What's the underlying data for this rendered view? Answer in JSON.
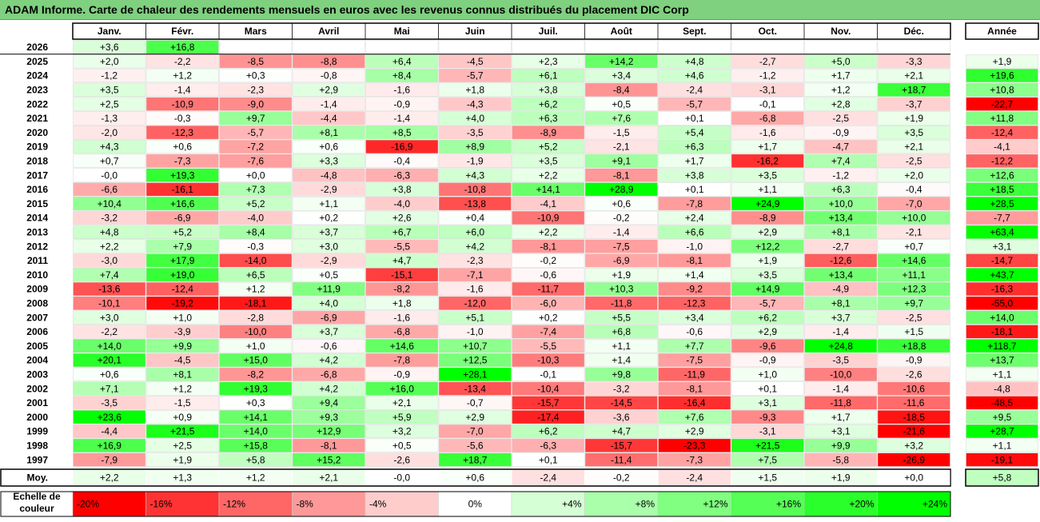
{
  "title": "ADAM Informe. Carte de chaleur des rendements mensuels en euros avec les revenus connus distribués du placement DIC Corp",
  "chart_data": {
    "type": "heatmap",
    "months": [
      "Janv.",
      "Févr.",
      "Mars",
      "Avril",
      "Mai",
      "Juin",
      "Juil.",
      "Août",
      "Sept.",
      "Oct.",
      "Nov.",
      "Déc."
    ],
    "year_label": "Année",
    "avg_label": "Moy.",
    "legend_label": "Echelle de couleur",
    "rows": [
      {
        "year": "2026",
        "values": [
          "+3,6",
          "+16,8",
          "",
          "",
          "",
          "",
          "",
          "",
          "",
          "",
          "",
          ""
        ],
        "total": ""
      },
      {
        "year": "2025",
        "values": [
          "+2,0",
          "-2,2",
          "-8,5",
          "-8,8",
          "+6,4",
          "-4,5",
          "+2,3",
          "+14,2",
          "+4,8",
          "-2,7",
          "+5,0",
          "-3,3"
        ],
        "total": "+1,9"
      },
      {
        "year": "2024",
        "values": [
          "-1,2",
          "+1,2",
          "+0,3",
          "-0,8",
          "+8,4",
          "-5,7",
          "+6,1",
          "+3,4",
          "+4,6",
          "-1,2",
          "+1,7",
          "+2,1"
        ],
        "total": "+19,6"
      },
      {
        "year": "2023",
        "values": [
          "+3,5",
          "-1,4",
          "-2,3",
          "+2,9",
          "-1,6",
          "+1,8",
          "+3,8",
          "-8,4",
          "-2,4",
          "-3,1",
          "+1,2",
          "+18,7"
        ],
        "total": "+10,8"
      },
      {
        "year": "2022",
        "values": [
          "+2,5",
          "-10,9",
          "-9,0",
          "-1,4",
          "-0,9",
          "-4,3",
          "+6,2",
          "+0,5",
          "-5,7",
          "-0,1",
          "+2,8",
          "-3,7"
        ],
        "total": "-22,7"
      },
      {
        "year": "2021",
        "values": [
          "-1,3",
          "-0,3",
          "+9,7",
          "-4,4",
          "-1,4",
          "+4,0",
          "+6,3",
          "+7,6",
          "+0,1",
          "-6,8",
          "-2,5",
          "+1,9"
        ],
        "total": "+11,8"
      },
      {
        "year": "2020",
        "values": [
          "-2,0",
          "-12,3",
          "-5,7",
          "+8,1",
          "+8,5",
          "-3,5",
          "-8,9",
          "-1,5",
          "+5,4",
          "-1,6",
          "-0,9",
          "+3,5"
        ],
        "total": "-12,4"
      },
      {
        "year": "2019",
        "values": [
          "+4,3",
          "+0,6",
          "-7,2",
          "+0,6",
          "-16,9",
          "+8,9",
          "+5,2",
          "-2,1",
          "+6,3",
          "+1,7",
          "-4,7",
          "+2,1"
        ],
        "total": "-4,1"
      },
      {
        "year": "2018",
        "values": [
          "+0,7",
          "-7,3",
          "-7,6",
          "+3,3",
          "-0,4",
          "-1,9",
          "+3,5",
          "+9,1",
          "+1,7",
          "-16,2",
          "+7,4",
          "-2,5"
        ],
        "total": "-12,2"
      },
      {
        "year": "2017",
        "values": [
          "-0,0",
          "+19,3",
          "+0,0",
          "-4,8",
          "-6,3",
          "+4,3",
          "+2,2",
          "-8,1",
          "+3,8",
          "+3,5",
          "-1,2",
          "+2,0"
        ],
        "total": "+12,6"
      },
      {
        "year": "2016",
        "values": [
          "-6,6",
          "-16,1",
          "+7,3",
          "-2,9",
          "+3,8",
          "-10,8",
          "+14,1",
          "+28,9",
          "+0,1",
          "+1,1",
          "+6,3",
          "-0,4"
        ],
        "total": "+18,5"
      },
      {
        "year": "2015",
        "values": [
          "+10,4",
          "+16,6",
          "+5,2",
          "+1,1",
          "-4,0",
          "-13,8",
          "-4,1",
          "+0,6",
          "-7,8",
          "+24,9",
          "+10,0",
          "-7,0"
        ],
        "total": "+28,5"
      },
      {
        "year": "2014",
        "values": [
          "-3,2",
          "-6,9",
          "-4,0",
          "+0,2",
          "+2,6",
          "+0,4",
          "-10,9",
          "-0,2",
          "+2,4",
          "-8,9",
          "+13,4",
          "+10,0"
        ],
        "total": "-7,7"
      },
      {
        "year": "2013",
        "values": [
          "+4,8",
          "+5,2",
          "+8,4",
          "+3,7",
          "+6,7",
          "+6,0",
          "+2,2",
          "-1,4",
          "+6,6",
          "+2,9",
          "+8,1",
          "-2,1"
        ],
        "total": "+63,4"
      },
      {
        "year": "2012",
        "values": [
          "+2,2",
          "+7,9",
          "-0,3",
          "+3,0",
          "-5,5",
          "+4,2",
          "-8,1",
          "-7,5",
          "-1,0",
          "+12,2",
          "-2,7",
          "+0,7"
        ],
        "total": "+3,1"
      },
      {
        "year": "2011",
        "values": [
          "-3,0",
          "+17,9",
          "-14,0",
          "-2,9",
          "+4,7",
          "-2,3",
          "-0,2",
          "-6,9",
          "-8,1",
          "+1,9",
          "-12,6",
          "+14,6"
        ],
        "total": "-14,7"
      },
      {
        "year": "2010",
        "values": [
          "+7,4",
          "+19,0",
          "+6,5",
          "+0,5",
          "-15,1",
          "-7,1",
          "-0,6",
          "+1,9",
          "+1,4",
          "+3,5",
          "+13,4",
          "+11,1"
        ],
        "total": "+43,7"
      },
      {
        "year": "2009",
        "values": [
          "-13,6",
          "-12,4",
          "+1,2",
          "+11,9",
          "-8,2",
          "-1,6",
          "-11,7",
          "+10,3",
          "-9,2",
          "+14,9",
          "-4,9",
          "+12,3"
        ],
        "total": "-16,3"
      },
      {
        "year": "2008",
        "values": [
          "-10,1",
          "-19,2",
          "-18,1",
          "+4,0",
          "+1,8",
          "-12,0",
          "-6,0",
          "-11,8",
          "-12,3",
          "-5,7",
          "+8,1",
          "+9,7"
        ],
        "total": "-55,0"
      },
      {
        "year": "2007",
        "values": [
          "+3,0",
          "+1,0",
          "-2,8",
          "-6,9",
          "-1,6",
          "+5,1",
          "+0,2",
          "+5,5",
          "+3,4",
          "+6,2",
          "+3,7",
          "-2,5"
        ],
        "total": "+14,0"
      },
      {
        "year": "2006",
        "values": [
          "-2,2",
          "-3,9",
          "-10,0",
          "+3,7",
          "-6,8",
          "-1,0",
          "-7,4",
          "+6,8",
          "-0,6",
          "+2,9",
          "-1,4",
          "+1,5"
        ],
        "total": "-18,1"
      },
      {
        "year": "2005",
        "values": [
          "+14,0",
          "+9,9",
          "+1,0",
          "-0,6",
          "+14,6",
          "+10,7",
          "-5,5",
          "+1,1",
          "+7,7",
          "-9,6",
          "+24,8",
          "+18,8"
        ],
        "total": "+118,7"
      },
      {
        "year": "2004",
        "values": [
          "+20,1",
          "-4,5",
          "+15,0",
          "+4,2",
          "-7,8",
          "+12,5",
          "-10,3",
          "+1,4",
          "-7,5",
          "-0,9",
          "-3,5",
          "-0,9"
        ],
        "total": "+13,7"
      },
      {
        "year": "2003",
        "values": [
          "+0,6",
          "+8,1",
          "-8,2",
          "-6,8",
          "-0,9",
          "+28,1",
          "-0,1",
          "+9,8",
          "-11,9",
          "+1,0",
          "-10,0",
          "-2,6"
        ],
        "total": "+1,1"
      },
      {
        "year": "2002",
        "values": [
          "+7,1",
          "+1,2",
          "+19,3",
          "+4,2",
          "+16,0",
          "-13,4",
          "-10,4",
          "-3,2",
          "-8,1",
          "+0,1",
          "-1,4",
          "-10,6"
        ],
        "total": "-4,8"
      },
      {
        "year": "2001",
        "values": [
          "-3,5",
          "-1,5",
          "+0,3",
          "+9,4",
          "+2,1",
          "-0,7",
          "-15,7",
          "-14,5",
          "-16,4",
          "+3,1",
          "-11,8",
          "-11,6"
        ],
        "total": "-48,5"
      },
      {
        "year": "2000",
        "values": [
          "+23,6",
          "+0,9",
          "+14,1",
          "+9,3",
          "+5,9",
          "+2,9",
          "-17,4",
          "-3,6",
          "+7,6",
          "-9,3",
          "+1,7",
          "-18,5"
        ],
        "total": "+9,5"
      },
      {
        "year": "1999",
        "values": [
          "-4,4",
          "+21,5",
          "+14,0",
          "+12,9",
          "+3,2",
          "-7,0",
          "+6,2",
          "+4,7",
          "+2,9",
          "-3,1",
          "+3,1",
          "-21,6"
        ],
        "total": "+28,7"
      },
      {
        "year": "1998",
        "values": [
          "+16,9",
          "+2,5",
          "+15,8",
          "-8,1",
          "+0,5",
          "-5,6",
          "-6,3",
          "-15,7",
          "-23,3",
          "+21,5",
          "+9,9",
          "+3,2"
        ],
        "total": "+1,1"
      },
      {
        "year": "1997",
        "values": [
          "-7,9",
          "+1,9",
          "+5,8",
          "+15,2",
          "-2,6",
          "+18,7",
          "+0,1",
          "-11,4",
          "-7,3",
          "+7,5",
          "-5,8",
          "-26,9"
        ],
        "total": "-19,1"
      }
    ],
    "averages": {
      "values": [
        "+2,2",
        "+1,3",
        "+1,2",
        "+2,1",
        "-0,0",
        "+0,6",
        "-2,4",
        "-0,2",
        "-2,4",
        "+1,5",
        "+1,9",
        "+0,0"
      ],
      "total": "+5,8"
    },
    "legend": [
      {
        "label": "-20%",
        "value": -20
      },
      {
        "label": "-16%",
        "value": -16
      },
      {
        "label": "-12%",
        "value": -12
      },
      {
        "label": "-8%",
        "value": -8
      },
      {
        "label": "-4%",
        "value": -4
      },
      {
        "label": "0%",
        "value": 0
      },
      {
        "label": "+4%",
        "value": 4
      },
      {
        "label": "+8%",
        "value": 8
      },
      {
        "label": "+12%",
        "value": 12
      },
      {
        "label": "+16%",
        "value": 16
      },
      {
        "label": "+20%",
        "value": 20
      },
      {
        "label": "+24%",
        "value": 24
      }
    ],
    "colors": {
      "negative": "#ff0000",
      "neutral": "#ffffff",
      "positive": "#00ff00"
    }
  }
}
